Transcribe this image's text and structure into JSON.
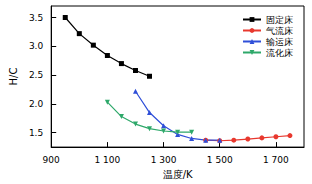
{
  "chart_data": {
    "type": "line",
    "x_label": "温度/K",
    "y_label": "H/C",
    "xlim": [
      900,
      1800
    ],
    "xticks": [
      900,
      {
        "value": 1100,
        "label": "1 100"
      },
      {
        "value": 1300,
        "label": "1 300"
      },
      {
        "value": 1500,
        "label": "1 500"
      },
      {
        "value": 1700,
        "label": "1 700"
      }
    ],
    "ylim": [
      1.25,
      3.7
    ],
    "yticks": [
      1.5,
      {
        "value": 2,
        "label": "2.0"
      },
      2.5,
      {
        "value": 3,
        "label": "3.0"
      },
      3.5
    ],
    "legend": "upper right",
    "grid": false,
    "series": [
      {
        "name": "固定床",
        "color": "#000000",
        "marker": "square",
        "x": [
          950,
          1000,
          1050,
          1100,
          1150,
          1200,
          1250
        ],
        "values": [
          3.5,
          3.22,
          3.02,
          2.84,
          2.7,
          2.58,
          2.48
        ]
      },
      {
        "name": "气流床",
        "color": "#e8382e",
        "marker": "circle",
        "x": [
          1450,
          1500,
          1550,
          1600,
          1650,
          1700,
          1750
        ],
        "values": [
          1.37,
          1.36,
          1.37,
          1.39,
          1.41,
          1.43,
          1.45
        ]
      },
      {
        "name": "输运床",
        "color": "#2f4fd8",
        "marker": "triangle",
        "x": [
          1200,
          1250,
          1300,
          1350,
          1400,
          1450,
          1500
        ],
        "values": [
          2.22,
          1.85,
          1.62,
          1.47,
          1.4,
          1.37,
          1.37
        ]
      },
      {
        "name": "流化床",
        "color": "#2ea86a",
        "marker": "triangle_down",
        "x": [
          1100,
          1150,
          1200,
          1250,
          1300,
          1350,
          1400
        ],
        "values": [
          2.03,
          1.78,
          1.65,
          1.57,
          1.53,
          1.51,
          1.51
        ]
      }
    ]
  }
}
